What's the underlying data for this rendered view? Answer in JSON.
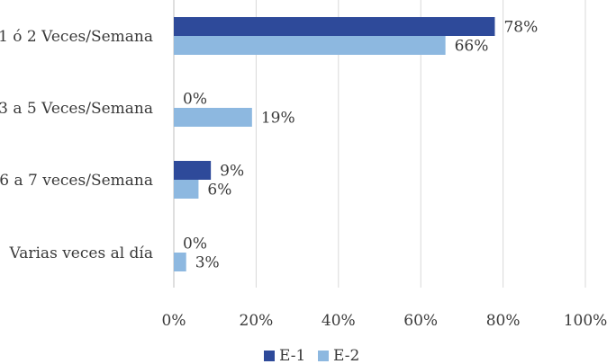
{
  "chart_data": {
    "type": "bar",
    "orientation": "horizontal",
    "categories": [
      "1 ó 2 Veces/Semana",
      "3 a 5 Veces/Semana",
      "6 a 7 veces/Semana",
      "Varias veces al día"
    ],
    "series": [
      {
        "name": "E-1",
        "color": "#2e4a9a",
        "values": [
          78,
          0,
          9,
          0
        ],
        "labels": [
          "78%",
          "0%",
          "9%",
          "0%"
        ]
      },
      {
        "name": "E-2",
        "color": "#8db8e0",
        "values": [
          66,
          19,
          6,
          3
        ],
        "labels": [
          "66%",
          "19%",
          "6%",
          "3%"
        ]
      }
    ],
    "xlim": [
      0,
      100
    ],
    "x_ticks": [
      "0%",
      "20%",
      "40%",
      "60%",
      "80%",
      "100%"
    ],
    "grid": true,
    "legend_position": "bottom"
  }
}
